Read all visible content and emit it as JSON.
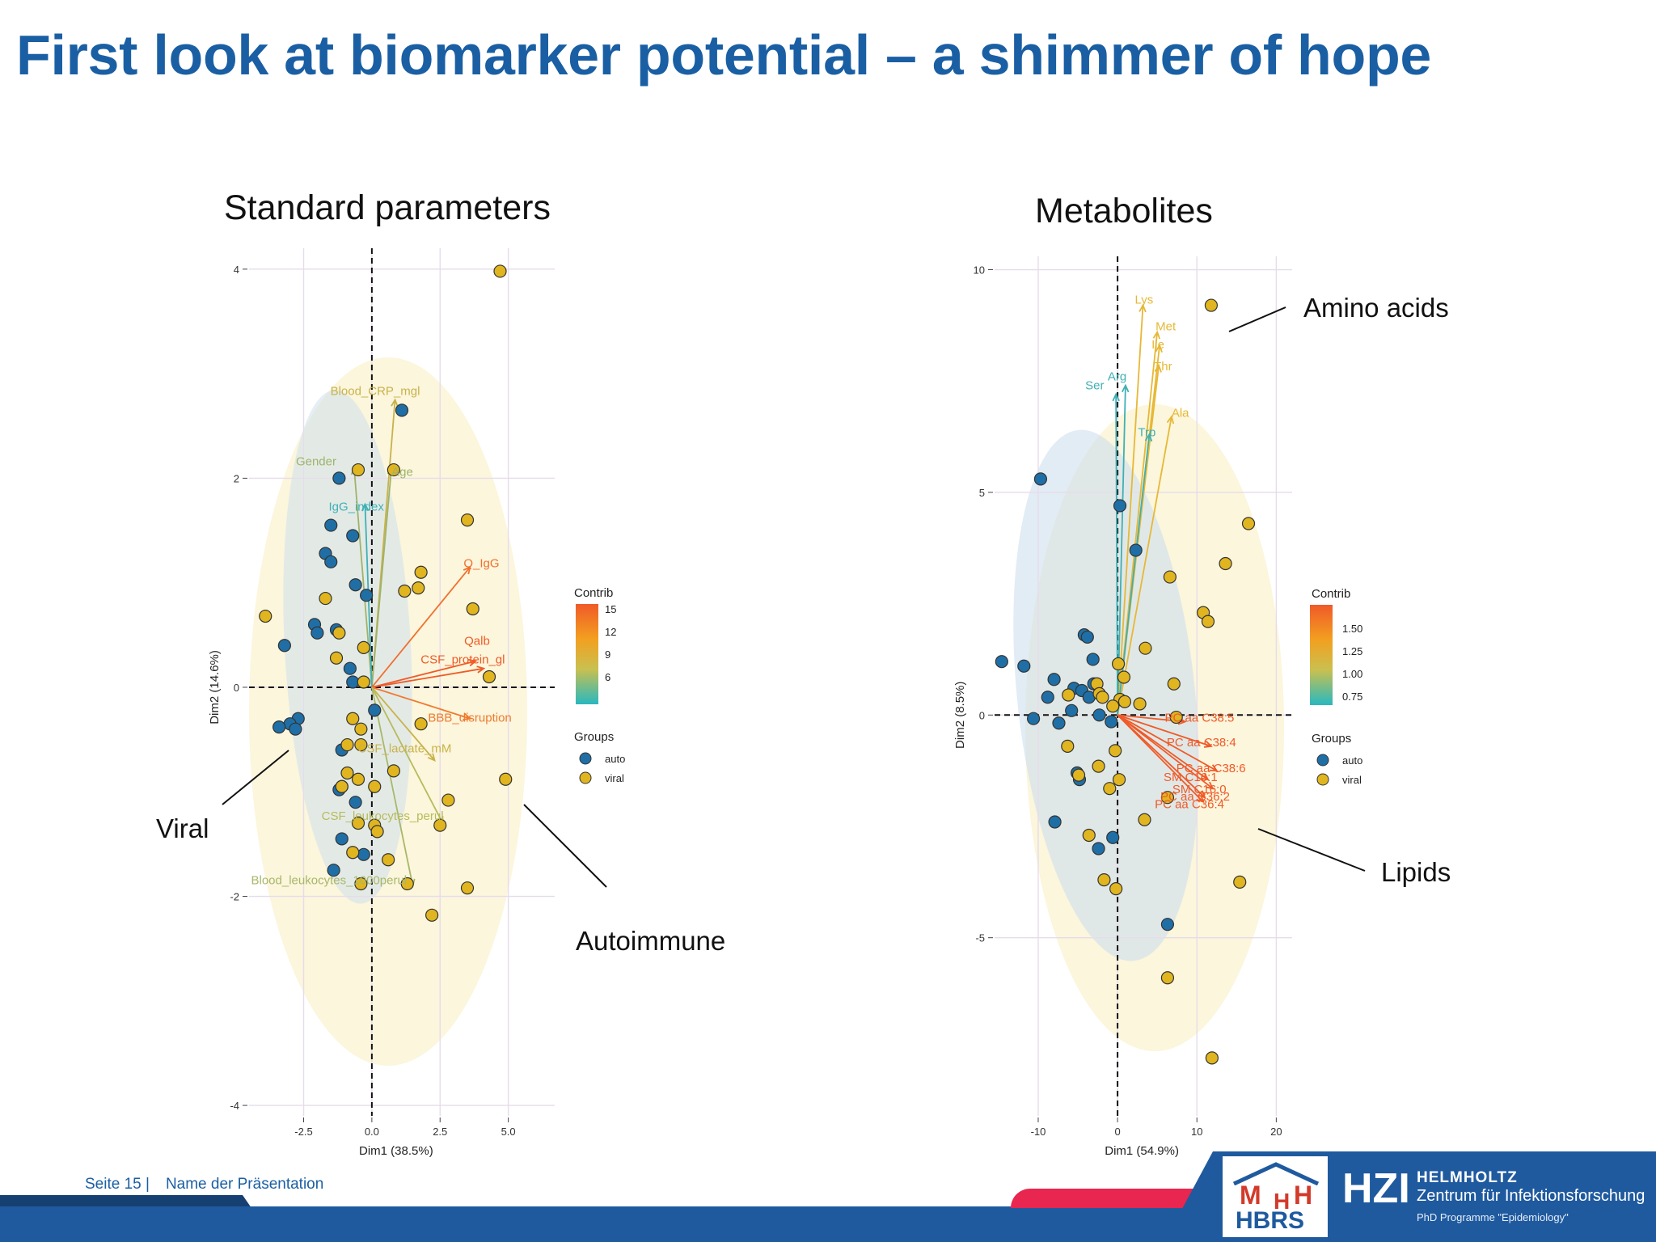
{
  "slide": {
    "title": "First look at biomarker potential – a shimmer of hope",
    "left_panel_title": "Standard parameters",
    "right_panel_title": "Metabolites",
    "annotations": {
      "viral": "Viral",
      "autoimmune": "Autoimmune",
      "amino_acids": "Amino acids",
      "lipids": "Lipids"
    },
    "footer": {
      "page": "Seite 15 |",
      "presentation_name": "Name der Präsentation"
    },
    "logos": {
      "mhh_m": "M",
      "mhh_h_small": "H",
      "mhh_h": "H",
      "hbrs": "HBRS",
      "hzi": "HZI",
      "helmholtz": "HELMHOLTZ",
      "hzi_full": "Zentrum für Infektionsforschung",
      "programme": "PhD Programme \"Epidemiology\""
    },
    "colors": {
      "title": "#1a5fa3",
      "auto": "#1f6fa6",
      "viral": "#e0b51f",
      "footer_bar": "#1f5a9f",
      "accent": "#e8264f"
    }
  },
  "chart_data": [
    {
      "type": "scatter",
      "title": "Standard parameters",
      "xlabel": "Dim1 (38.5%)",
      "ylabel": "Dim2 (14.6%)",
      "xlim": [
        -4.5,
        6.7
      ],
      "ylim": [
        -4.1,
        4.2
      ],
      "xticks": [
        "-2.5",
        "0.0",
        "2.5",
        "5.0"
      ],
      "xtick_values": [
        -2.5,
        0,
        2.5,
        5.0
      ],
      "yticks": [
        "-4",
        "-2",
        "0",
        "2",
        "4"
      ],
      "ytick_values": [
        -4,
        -2,
        0,
        2,
        4
      ],
      "grid": true,
      "legend_position": "right",
      "contrib_legend": {
        "title": "Contrib",
        "ticks": [
          "15",
          "12",
          "9",
          "6"
        ]
      },
      "groups_legend": {
        "title": "Groups",
        "items": [
          "auto",
          "viral"
        ]
      },
      "series": [
        {
          "name": "auto",
          "points": [
            [
              -1.2,
              2.0
            ],
            [
              1.1,
              2.65
            ],
            [
              -1.5,
              1.55
            ],
            [
              -0.7,
              1.45
            ],
            [
              -1.7,
              1.28
            ],
            [
              -1.5,
              1.2
            ],
            [
              -0.6,
              0.98
            ],
            [
              -0.2,
              0.88
            ],
            [
              -1.3,
              0.55
            ],
            [
              -2.1,
              0.6
            ],
            [
              -2.0,
              0.52
            ],
            [
              -3.2,
              0.4
            ],
            [
              -0.8,
              0.18
            ],
            [
              -0.7,
              0.05
            ],
            [
              -2.7,
              -0.3
            ],
            [
              -3.0,
              -0.35
            ],
            [
              -2.8,
              -0.4
            ],
            [
              -3.4,
              -0.38
            ],
            [
              0.1,
              -0.22
            ],
            [
              -1.1,
              -0.6
            ],
            [
              -1.1,
              -0.95
            ],
            [
              -1.2,
              -0.98
            ],
            [
              -0.6,
              -1.1
            ],
            [
              -1.1,
              -1.45
            ],
            [
              -0.3,
              -1.6
            ],
            [
              -1.4,
              -1.75
            ]
          ]
        },
        {
          "name": "viral",
          "points": [
            [
              4.7,
              3.98
            ],
            [
              -0.5,
              2.08
            ],
            [
              0.8,
              2.08
            ],
            [
              3.5,
              1.6
            ],
            [
              1.8,
              1.1
            ],
            [
              1.7,
              0.95
            ],
            [
              1.2,
              0.92
            ],
            [
              -1.7,
              0.85
            ],
            [
              3.7,
              0.75
            ],
            [
              -3.9,
              0.68
            ],
            [
              -1.2,
              0.52
            ],
            [
              -0.3,
              0.38
            ],
            [
              -1.3,
              0.28
            ],
            [
              -0.3,
              0.05
            ],
            [
              4.3,
              0.1
            ],
            [
              -0.7,
              -0.3
            ],
            [
              -0.4,
              -0.4
            ],
            [
              -0.4,
              -0.55
            ],
            [
              -0.9,
              -0.55
            ],
            [
              1.8,
              -0.35
            ],
            [
              -0.9,
              -0.82
            ],
            [
              -0.5,
              -0.88
            ],
            [
              0.8,
              -0.8
            ],
            [
              4.9,
              -0.88
            ],
            [
              0.1,
              -0.95
            ],
            [
              -1.1,
              -0.95
            ],
            [
              2.8,
              -1.08
            ],
            [
              -0.5,
              -1.3
            ],
            [
              0.1,
              -1.32
            ],
            [
              0.2,
              -1.38
            ],
            [
              2.5,
              -1.32
            ],
            [
              -0.7,
              -1.58
            ],
            [
              0.6,
              -1.65
            ],
            [
              -0.4,
              -1.88
            ],
            [
              1.3,
              -1.88
            ],
            [
              3.5,
              -1.92
            ],
            [
              2.2,
              -2.18
            ]
          ]
        }
      ],
      "variables": [
        {
          "name": "Blood_CRP_mgl",
          "x": 0.85,
          "y": 2.75,
          "color": "#c9b24a"
        },
        {
          "name": "Gender",
          "x": -0.65,
          "y": 2.1,
          "color": "#9fb36a"
        },
        {
          "name": "Age",
          "x": 0.72,
          "y": 2.1,
          "color": "#9fb36a"
        },
        {
          "name": "IgG_index",
          "x": -0.25,
          "y": 1.75,
          "color": "#3fb0b5"
        },
        {
          "name": "Q_IgG",
          "x": 3.6,
          "y": 1.15,
          "color": "#f07030"
        },
        {
          "name": "Qalb",
          "x": 3.8,
          "y": 0.25,
          "color": "#f05a28"
        },
        {
          "name": "CSF_protein_gl",
          "x": 4.1,
          "y": 0.18,
          "color": "#f05a28"
        },
        {
          "name": "BBB_disruption",
          "x": 3.6,
          "y": -0.3,
          "color": "#f07a30"
        },
        {
          "name": "CSF_lactate_mM",
          "x": 2.3,
          "y": -0.7,
          "color": "#c9b24a"
        },
        {
          "name": "CSF_leukocytes_perul",
          "x": 2.6,
          "y": -1.3,
          "color": "#b8ba5a"
        },
        {
          "name": "Blood_leukocytes_1000perul",
          "x": 1.5,
          "y": -1.9,
          "color": "#a9b76a"
        }
      ]
    },
    {
      "type": "scatter",
      "title": "Metabolites",
      "xlabel": "Dim1 (54.9%)",
      "ylabel": "Dim2 (8.5%)",
      "xlim": [
        -15.5,
        22
      ],
      "ylim": [
        -9,
        10.3
      ],
      "xticks": [
        "-10",
        "0",
        "10",
        "20"
      ],
      "xtick_values": [
        -10,
        0,
        10,
        20
      ],
      "yticks": [
        "-5",
        "0",
        "5",
        "10"
      ],
      "ytick_values": [
        -5,
        0,
        5,
        10
      ],
      "grid": true,
      "legend_position": "right",
      "contrib_legend": {
        "title": "Contrib",
        "ticks": [
          "1.50",
          "1.25",
          "1.00",
          "0.75"
        ]
      },
      "groups_legend": {
        "title": "Groups",
        "items": [
          "auto",
          "viral"
        ]
      },
      "series": [
        {
          "name": "auto",
          "points": [
            [
              -9.7,
              5.3
            ],
            [
              0.3,
              4.7
            ],
            [
              2.3,
              3.7
            ],
            [
              -4.2,
              1.8
            ],
            [
              -3.8,
              1.75
            ],
            [
              -14.6,
              1.2
            ],
            [
              -11.8,
              1.1
            ],
            [
              -8.0,
              0.8
            ],
            [
              -3.1,
              1.25
            ],
            [
              -5.5,
              0.6
            ],
            [
              -4.5,
              0.55
            ],
            [
              -3.0,
              0.7
            ],
            [
              -8.8,
              0.4
            ],
            [
              -3.6,
              0.4
            ],
            [
              -10.6,
              -0.08
            ],
            [
              -7.4,
              -0.18
            ],
            [
              -5.8,
              0.1
            ],
            [
              -2.3,
              0.0
            ],
            [
              -0.8,
              -0.15
            ],
            [
              -5.1,
              -1.3
            ],
            [
              -4.8,
              -1.45
            ],
            [
              -7.9,
              -2.4
            ],
            [
              -0.6,
              -2.75
            ],
            [
              -2.4,
              -3.0
            ],
            [
              6.3,
              -4.7
            ]
          ]
        },
        {
          "name": "viral",
          "points": [
            [
              11.8,
              9.2
            ],
            [
              16.5,
              4.3
            ],
            [
              13.6,
              3.4
            ],
            [
              6.6,
              3.1
            ],
            [
              10.8,
              2.3
            ],
            [
              11.4,
              2.1
            ],
            [
              3.5,
              1.5
            ],
            [
              0.1,
              1.15
            ],
            [
              0.8,
              0.85
            ],
            [
              -2.6,
              0.7
            ],
            [
              -6.2,
              0.45
            ],
            [
              -2.3,
              0.48
            ],
            [
              -1.9,
              0.4
            ],
            [
              0.3,
              0.35
            ],
            [
              0.9,
              0.3
            ],
            [
              2.8,
              0.25
            ],
            [
              7.1,
              0.7
            ],
            [
              -0.6,
              0.2
            ],
            [
              7.4,
              -0.05
            ],
            [
              -6.3,
              -0.7
            ],
            [
              -0.3,
              -0.8
            ],
            [
              -2.4,
              -1.15
            ],
            [
              0.2,
              -1.45
            ],
            [
              -1.0,
              -1.65
            ],
            [
              -4.9,
              -1.35
            ],
            [
              6.3,
              -1.85
            ],
            [
              3.4,
              -2.35
            ],
            [
              -3.6,
              -2.7
            ],
            [
              -1.7,
              -3.7
            ],
            [
              -0.2,
              -3.9
            ],
            [
              15.4,
              -3.75
            ],
            [
              6.3,
              -5.9
            ],
            [
              11.9,
              -7.7
            ]
          ]
        }
      ],
      "variables": [
        {
          "name": "Lys",
          "x": 3.2,
          "y": 9.2,
          "color": "#e6b835"
        },
        {
          "name": "Met",
          "x": 5.0,
          "y": 8.6,
          "color": "#e6b835"
        },
        {
          "name": "Ile",
          "x": 5.3,
          "y": 8.3,
          "color": "#e6b835"
        },
        {
          "name": "Thr",
          "x": 5.2,
          "y": 7.85,
          "color": "#e6b835"
        },
        {
          "name": "Arg",
          "x": 1.0,
          "y": 7.4,
          "color": "#3fb0b5"
        },
        {
          "name": "Ser",
          "x": -0.2,
          "y": 7.2,
          "color": "#3fb0b5"
        },
        {
          "name": "Ala",
          "x": 6.8,
          "y": 6.7,
          "color": "#e6b835"
        },
        {
          "name": "Trp",
          "x": 4.0,
          "y": 6.3,
          "color": "#3fb0b5"
        },
        {
          "name": "PC aa C38:5",
          "x": 8.5,
          "y": -0.15,
          "color": "#f05a28"
        },
        {
          "name": "PC aa C38:4",
          "x": 11.8,
          "y": -0.7,
          "color": "#f05a28"
        },
        {
          "name": "PC aa C38:6",
          "x": 12.5,
          "y": -1.25,
          "color": "#f05a28"
        },
        {
          "name": "SM C16:1",
          "x": 11.4,
          "y": -1.45,
          "color": "#f05a28"
        },
        {
          "name": "SM C16:0",
          "x": 12.0,
          "y": -1.65,
          "color": "#f05a28"
        },
        {
          "name": "PC aa C36:2",
          "x": 11.0,
          "y": -1.85,
          "color": "#f05a28"
        },
        {
          "name": "PC aa C36:4",
          "x": 10.8,
          "y": -1.95,
          "color": "#f05a28"
        }
      ]
    }
  ]
}
